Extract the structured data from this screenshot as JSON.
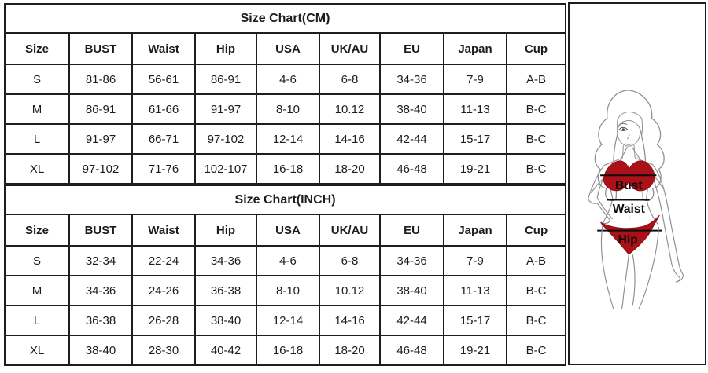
{
  "tables": [
    {
      "title": "Size Chart(CM)",
      "headers": [
        "Size",
        "BUST",
        "Waist",
        "Hip",
        "USA",
        "UK/AU",
        "EU",
        "Japan",
        "Cup"
      ],
      "rows": [
        [
          "S",
          "81-86",
          "56-61",
          "86-91",
          "4-6",
          "6-8",
          "34-36",
          "7-9",
          "A-B"
        ],
        [
          "M",
          "86-91",
          "61-66",
          "91-97",
          "8-10",
          "10.12",
          "38-40",
          "11-13",
          "B-C"
        ],
        [
          "L",
          "91-97",
          "66-71",
          "97-102",
          "12-14",
          "14-16",
          "42-44",
          "15-17",
          "B-C"
        ],
        [
          "XL",
          "97-102",
          "71-76",
          "102-107",
          "16-18",
          "18-20",
          "46-48",
          "19-21",
          "B-C"
        ]
      ]
    },
    {
      "title": "Size Chart(INCH)",
      "headers": [
        "Size",
        "BUST",
        "Waist",
        "Hip",
        "USA",
        "UK/AU",
        "EU",
        "Japan",
        "Cup"
      ],
      "rows": [
        [
          "S",
          "32-34",
          "22-24",
          "34-36",
          "4-6",
          "6-8",
          "34-36",
          "7-9",
          "A-B"
        ],
        [
          "M",
          "34-36",
          "24-26",
          "36-38",
          "8-10",
          "10.12",
          "38-40",
          "11-13",
          "B-C"
        ],
        [
          "L",
          "36-38",
          "26-28",
          "38-40",
          "12-14",
          "14-16",
          "42-44",
          "15-17",
          "B-C"
        ],
        [
          "XL",
          "38-40",
          "28-30",
          "40-42",
          "16-18",
          "18-20",
          "46-48",
          "19-21",
          "B-C"
        ]
      ]
    }
  ],
  "figure": {
    "labels": {
      "bust": "Bust",
      "waist": "Waist",
      "hip": "Hip"
    },
    "colors": {
      "bikini_red": "#ab1117",
      "line_black": "#0d0d0d",
      "sketch_gray": "#8f8f8f"
    }
  }
}
